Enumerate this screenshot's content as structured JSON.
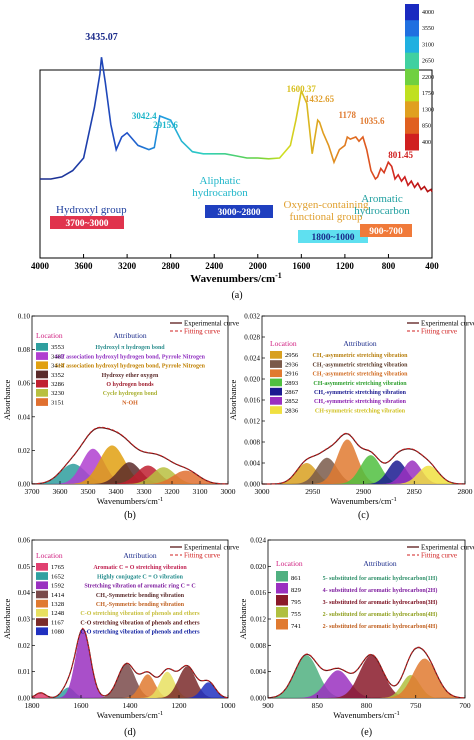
{
  "chart_data": [
    {
      "panel": "(a)",
      "type": "line",
      "xlabel": "Wavenumbers/cm",
      "xlabel_sup": "-1",
      "xlim": [
        4000,
        400
      ],
      "xticks": [
        "4000",
        "3600",
        "3200",
        "2800",
        "2400",
        "2000",
        "1600",
        "1200",
        "800",
        "400"
      ],
      "series": [
        {
          "x": [
            4000,
            3900,
            3800,
            3700,
            3600,
            3500,
            3450,
            3435,
            3400,
            3350,
            3300,
            3250,
            3200,
            3100,
            3000,
            2950,
            2900,
            2800,
            2700,
            2600,
            2500,
            2400,
            2350,
            2300,
            2200,
            2100,
            2000,
            1900,
            1800,
            1700,
            1650,
            1600,
            1550,
            1500,
            1450,
            1432,
            1400,
            1350,
            1300,
            1250,
            1200,
            1178,
            1150,
            1100,
            1070,
            1035,
            1000,
            960,
            920,
            900,
            870,
            840,
            801,
            770,
            740,
            710,
            680,
            650,
            620,
            590,
            560,
            530,
            500,
            470,
            440,
            410,
            400
          ],
          "y": [
            0.5,
            0.5,
            0.55,
            0.7,
            1.0,
            2.2,
            3.0,
            3.4,
            2.8,
            1.8,
            1.2,
            1.5,
            1.6,
            1.3,
            1.2,
            1.25,
            2.0,
            1.9,
            1.4,
            1.15,
            1.1,
            1.1,
            1.1,
            1.1,
            1.05,
            1.0,
            1.0,
            0.98,
            1.0,
            1.3,
            1.9,
            2.6,
            2.3,
            1.1,
            1.9,
            1.85,
            1.6,
            1.3,
            0.9,
            1.2,
            1.3,
            1.5,
            1.45,
            1.5,
            1.4,
            1.5,
            1.2,
            0.7,
            0.5,
            0.55,
            0.75,
            0.65,
            0.9,
            0.8,
            0.5,
            0.6,
            0.45,
            0.55,
            0.35,
            0.45,
            0.3,
            0.4,
            0.25,
            0.32,
            0.2,
            0.25,
            0.2
          ]
        }
      ],
      "annotations": [
        "3435.07",
        "3042.4",
        "2915.6",
        "1600.37",
        "1432.65",
        "1178",
        "1035.6",
        "801.45"
      ],
      "group_labels": [
        {
          "name": "Hydroxyl group",
          "range": "3700~3000",
          "color": "#1f3f9e",
          "box": "#e0334d"
        },
        {
          "name": "Aliphatic hydrocarbon",
          "range": "3000~2800",
          "color": "#1fb6c9",
          "box": "#1f3fbf"
        },
        {
          "name": "Oxygen-containing functional group",
          "range": "1800~1000",
          "color": "#e0a030",
          "box": "#5fe0f0"
        },
        {
          "name": "Aromatic hydrocarbon",
          "range": "900~700",
          "color": "#1f9f9f",
          "box": "#f07a3a"
        }
      ],
      "colorbar": [
        "4000",
        "3550",
        "3100",
        "2650",
        "2200",
        "1750",
        "1300",
        "850",
        "400"
      ]
    },
    {
      "panel": "(b)",
      "type": "area",
      "xlabel": "Wavenumbers/cm",
      "xlabel_sup": "-1",
      "ylabel": "Absorbance",
      "xlim": [
        3700,
        3000
      ],
      "ylim": [
        0.0,
        0.1
      ],
      "xticks": [
        "3700",
        "3600",
        "3500",
        "3400",
        "3300",
        "3200",
        "3100",
        "3000"
      ],
      "yticks": [
        "0.00",
        "0.02",
        "0.04",
        "0.06",
        "0.08",
        "0.10"
      ],
      "legend_lines": [
        "Experimental curve",
        "Fitting curve"
      ],
      "table_header": [
        "Location",
        "Attribution"
      ],
      "peaks": [
        {
          "loc": "3553",
          "color": "#2e9e9e",
          "attr": "Hydroxyl π hydrogen bond",
          "attr_color": "#2e8f8f",
          "center": 3553,
          "height": 0.012,
          "width": 45
        },
        {
          "loc": "3482",
          "color": "#b040d0",
          "attr": "Self association hydroxyl hydrogen bond, Pyrrole Nitrogen",
          "attr_color": "#9030c0",
          "center": 3482,
          "height": 0.021,
          "width": 40
        },
        {
          "loc": "3414",
          "color": "#e0a010",
          "attr": "Self association hydroxyl hydrogen bond, Pyrrole Nitrogen",
          "attr_color": "#c08000",
          "center": 3414,
          "height": 0.023,
          "width": 45
        },
        {
          "loc": "3352",
          "color": "#5a2a2a",
          "attr": "Hydroxy ether oxygen",
          "attr_color": "#5a2a2a",
          "center": 3352,
          "height": 0.013,
          "width": 40
        },
        {
          "loc": "3286",
          "color": "#c02030",
          "attr": "O hydrogen bonds",
          "attr_color": "#a02030",
          "center": 3286,
          "height": 0.011,
          "width": 40
        },
        {
          "loc": "3230",
          "color": "#b8c040",
          "attr": "Cycle hydrogen bond",
          "attr_color": "#a8b030",
          "center": 3230,
          "height": 0.01,
          "width": 40
        },
        {
          "loc": "3151",
          "color": "#e07030",
          "attr": "N-OH",
          "attr_color": "#d06020",
          "center": 3151,
          "height": 0.008,
          "width": 45
        }
      ]
    },
    {
      "panel": "(c)",
      "type": "area",
      "xlabel": "Wavenumbers/cm",
      "xlabel_sup": "-1",
      "ylabel": "Absorbance",
      "xlim": [
        3000,
        2800
      ],
      "ylim": [
        0.0,
        0.032
      ],
      "xticks": [
        "3000",
        "2950",
        "2900",
        "2850",
        "2800"
      ],
      "yticks": [
        "0.000",
        "0.004",
        "0.008",
        "0.012",
        "0.016",
        "0.020",
        "0.024",
        "0.028",
        "0.032"
      ],
      "legend_lines": [
        "Experimental curve",
        "Fitting curve"
      ],
      "table_header": [
        "Location",
        "Attribution"
      ],
      "peaks": [
        {
          "loc": "2956",
          "color": "#d8a020",
          "attr": "CH₃-asymmetric stretching vibration",
          "attr_color": "#b88010",
          "center": 2956,
          "height": 0.004,
          "width": 10
        },
        {
          "loc": "2936",
          "color": "#7a5a4a",
          "attr": "CH₂-asymmetric stretching vibration",
          "attr_color": "#5a3a2a",
          "center": 2936,
          "height": 0.005,
          "width": 10
        },
        {
          "loc": "2916",
          "color": "#e07a30",
          "attr": "CH₂-asymmetric stretching vibration",
          "attr_color": "#d06a20",
          "center": 2916,
          "height": 0.0085,
          "width": 10
        },
        {
          "loc": "2893",
          "color": "#50c040",
          "attr": "CH-asymmetric stretching vibration",
          "attr_color": "#30a030",
          "center": 2893,
          "height": 0.0055,
          "width": 10
        },
        {
          "loc": "2867",
          "color": "#1a1a90",
          "attr": "CH₂-symmetric stretching vibration",
          "attr_color": "#1a1a90",
          "center": 2867,
          "height": 0.0045,
          "width": 9
        },
        {
          "loc": "2852",
          "color": "#9a30c0",
          "attr": "CH₂-symmetric stretching vibration",
          "attr_color": "#8a20b0",
          "center": 2852,
          "height": 0.0045,
          "width": 9
        },
        {
          "loc": "2836",
          "color": "#f0e040",
          "attr": "CH-symmetric stretching vibration",
          "attr_color": "#d0c020",
          "center": 2836,
          "height": 0.0035,
          "width": 10
        }
      ]
    },
    {
      "panel": "(d)",
      "type": "area",
      "xlabel": "Wavenumbers/cm",
      "xlabel_sup": "-1",
      "ylabel": "Absorbance",
      "xlim": [
        1800,
        1000
      ],
      "ylim": [
        0.0,
        0.06
      ],
      "xticks": [
        "1800",
        "1600",
        "1400",
        "1200",
        "1000"
      ],
      "yticks": [
        "0.00",
        "0.01",
        "0.02",
        "0.03",
        "0.04",
        "0.05",
        "0.06"
      ],
      "legend_lines": [
        "Experimental curve",
        "Fitting curve"
      ],
      "table_header": [
        "Location",
        "Attribution"
      ],
      "peaks": [
        {
          "loc": "1765",
          "color": "#e04070",
          "attr": "Aromatic C = O stretching vibration",
          "attr_color": "#c02050",
          "center": 1765,
          "height": 0.002,
          "width": 20
        },
        {
          "loc": "1652",
          "color": "#30a0a0",
          "attr": "Highly conjugate C = O vibration",
          "attr_color": "#208a8a",
          "center": 1652,
          "height": 0.004,
          "width": 25
        },
        {
          "loc": "1592",
          "color": "#9a30c0",
          "attr": "Stretching vibration of aromatic ring C = C",
          "attr_color": "#8020a0",
          "center": 1592,
          "height": 0.026,
          "width": 30
        },
        {
          "loc": "1414",
          "color": "#7a4a4a",
          "attr": "CH₃-Symmetric bending vibration",
          "attr_color": "#5a2a2a",
          "center": 1414,
          "height": 0.013,
          "width": 35
        },
        {
          "loc": "1328",
          "color": "#e07a30",
          "attr": "CH₂-Symmetric bending vibration",
          "attr_color": "#c06020",
          "center": 1328,
          "height": 0.009,
          "width": 30
        },
        {
          "loc": "1248",
          "color": "#e8e060",
          "attr": "C-O stretching vibration of phenols and ethers",
          "attr_color": "#c8c040",
          "center": 1248,
          "height": 0.01,
          "width": 30
        },
        {
          "loc": "1167",
          "color": "#7a2a2a",
          "attr": "C-O stretching vibration of phenols and ethers",
          "attr_color": "#5a1a1a",
          "center": 1167,
          "height": 0.012,
          "width": 35
        },
        {
          "loc": "1080",
          "color": "#2030c0",
          "attr": "C-O stretching vibration of phenols and ethers",
          "attr_color": "#1020a0",
          "center": 1080,
          "height": 0.006,
          "width": 28
        }
      ]
    },
    {
      "panel": "(e)",
      "type": "area",
      "xlabel": "Wavenumbers/cm",
      "xlabel_sup": "-1",
      "ylabel": "Absorbance",
      "xlim": [
        900,
        700
      ],
      "ylim": [
        0.0,
        0.024
      ],
      "xticks": [
        "900",
        "850",
        "800",
        "750",
        "700"
      ],
      "yticks": [
        "0.000",
        "0.004",
        "0.008",
        "0.012",
        "0.016",
        "0.020",
        "0.024"
      ],
      "legend_lines": [
        "Experimental curve",
        "Fitting curve"
      ],
      "table_header": [
        "Location",
        "Attribution"
      ],
      "peaks": [
        {
          "loc": "861",
          "color": "#50b080",
          "attr": "5- substituted for aromatic hydrocarbon(1H)",
          "attr_color": "#30906a",
          "center": 861,
          "height": 0.0065,
          "width": 12
        },
        {
          "loc": "829",
          "color": "#9a30c0",
          "attr": "4- substituted for aromatic hydrocarbon(2H)",
          "attr_color": "#8020a0",
          "center": 829,
          "height": 0.0042,
          "width": 12
        },
        {
          "loc": "795",
          "color": "#8a1a2a",
          "attr": "3- substituted for aromatic hydrocarbon(3H)",
          "attr_color": "#7a1020",
          "center": 795,
          "height": 0.0065,
          "width": 12
        },
        {
          "loc": "755",
          "color": "#b0c040",
          "attr": "2- substituted for aromatic hydrocarbon(4H)",
          "attr_color": "#90a020",
          "center": 755,
          "height": 0.0035,
          "width": 9
        },
        {
          "loc": "741",
          "color": "#e07a30",
          "attr": "2- substituted for aromatic hydrocarbon(4H)",
          "attr_color": "#c06020",
          "center": 741,
          "height": 0.006,
          "width": 12
        }
      ]
    }
  ],
  "captions": [
    "(a)",
    "(b)",
    "(c)",
    "(d)",
    "(e)"
  ]
}
